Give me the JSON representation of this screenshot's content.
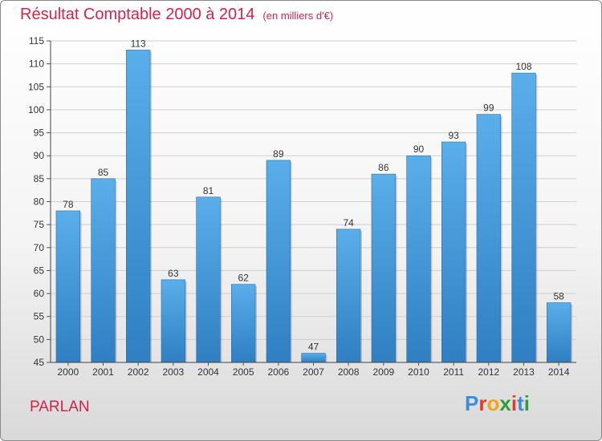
{
  "title": "Résultat Comptable 2000 à 2014",
  "subtitle": "(en milliers d'€)",
  "commune": "PARLAN",
  "logo": {
    "letters": [
      "P",
      "r",
      "o",
      "x",
      "i",
      "t",
      "i"
    ],
    "colors": [
      "#3a8fd8",
      "#e23b28",
      "#f2a516",
      "#2f9e3a",
      "#e23b28",
      "#3a8fd8",
      "#2f9e3a"
    ]
  },
  "colors": {
    "bar": "#4aa0e0",
    "text": "#d2234a",
    "grid": "#cfcfcf"
  },
  "chart_data": {
    "type": "bar",
    "title": "Résultat Comptable 2000 à 2014",
    "subtitle": "(en milliers d'€)",
    "categories": [
      "2000",
      "2001",
      "2002",
      "2003",
      "2004",
      "2005",
      "2006",
      "2007",
      "2008",
      "2009",
      "2010",
      "2011",
      "2012",
      "2013",
      "2014"
    ],
    "values": [
      78,
      85,
      113,
      63,
      81,
      62,
      89,
      47,
      74,
      86,
      90,
      93,
      99,
      108,
      58
    ],
    "ylim": [
      45,
      115
    ],
    "yticks": [
      45,
      50,
      55,
      60,
      65,
      70,
      75,
      80,
      85,
      90,
      95,
      100,
      105,
      110,
      115
    ],
    "grid": true,
    "data_labels": true
  }
}
